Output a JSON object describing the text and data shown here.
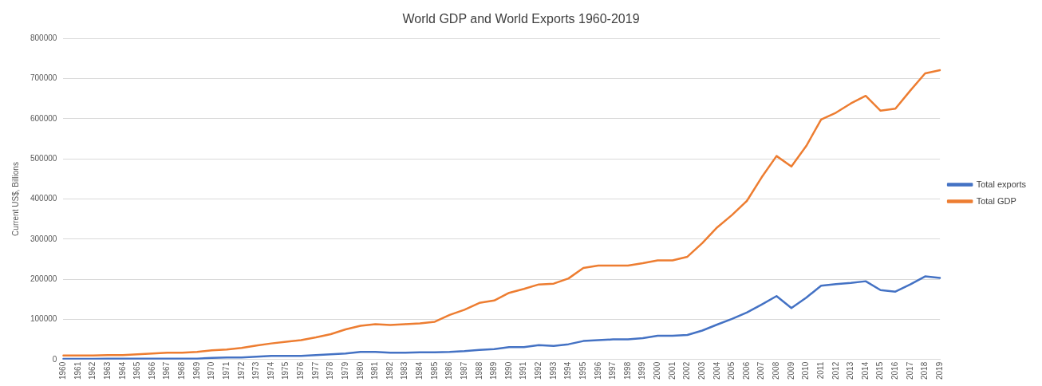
{
  "chart_data": {
    "type": "line",
    "title": "World GDP and World Exports 1960-2019",
    "ylabel": "Current US$, Billions",
    "categories": [
      "1960",
      "1961",
      "1962",
      "1963",
      "1964",
      "1965",
      "1966",
      "1967",
      "1968",
      "1969",
      "1970",
      "1971",
      "1972",
      "1973",
      "1974",
      "1975",
      "1976",
      "1977",
      "1978",
      "1979",
      "1980",
      "1981",
      "1982",
      "1983",
      "1984",
      "1985",
      "1986",
      "1987",
      "1988",
      "1989",
      "1990",
      "1991",
      "1992",
      "1993",
      "1994",
      "1995",
      "1996",
      "1997",
      "1998",
      "1999",
      "2000",
      "2001",
      "2002",
      "2003",
      "2004",
      "2005",
      "2006",
      "2007",
      "2008",
      "2009",
      "2010",
      "2011",
      "2012",
      "2013",
      "2014",
      "2015",
      "2016",
      "2017",
      "2018",
      "2019"
    ],
    "series": [
      {
        "name": "Total exports",
        "color": "#4472c4",
        "values": [
          1500,
          1500,
          1500,
          2000,
          2000,
          2000,
          2000,
          2000,
          2000,
          2000,
          4000,
          5000,
          5000,
          7000,
          9000,
          9000,
          9000,
          11000,
          13000,
          15000,
          19000,
          19000,
          17000,
          17000,
          18000,
          18000,
          19000,
          21000,
          24000,
          26000,
          31000,
          31000,
          36000,
          34000,
          38000,
          46000,
          48000,
          50000,
          50000,
          53000,
          59000,
          59000,
          61000,
          72000,
          87000,
          101000,
          117000,
          137000,
          158000,
          128000,
          154000,
          184000,
          188000,
          191000,
          195000,
          173000,
          169000,
          187000,
          207000,
          203000
        ]
      },
      {
        "name": "Total GDP",
        "color": "#ed7d31",
        "values": [
          10000,
          10000,
          10000,
          11000,
          11000,
          13000,
          15000,
          17000,
          17000,
          19000,
          23000,
          25000,
          29000,
          35000,
          40000,
          44000,
          48000,
          55000,
          63000,
          75000,
          84000,
          88000,
          86000,
          88000,
          90000,
          94000,
          111000,
          124000,
          141000,
          147000,
          166000,
          176000,
          187000,
          189000,
          202000,
          228000,
          234000,
          234000,
          234000,
          240000,
          247000,
          247000,
          256000,
          290000,
          329000,
          360000,
          395000,
          454000,
          507000,
          481000,
          532000,
          598000,
          615000,
          638000,
          657000,
          620000,
          625000,
          670000,
          713000,
          721000
        ]
      }
    ],
    "ylim": [
      0,
      800000
    ],
    "yticks": [
      0,
      100000,
      200000,
      300000,
      400000,
      500000,
      600000,
      700000,
      800000
    ],
    "grid": "y",
    "legend": "right",
    "marker": "none",
    "line_style": "solid"
  }
}
